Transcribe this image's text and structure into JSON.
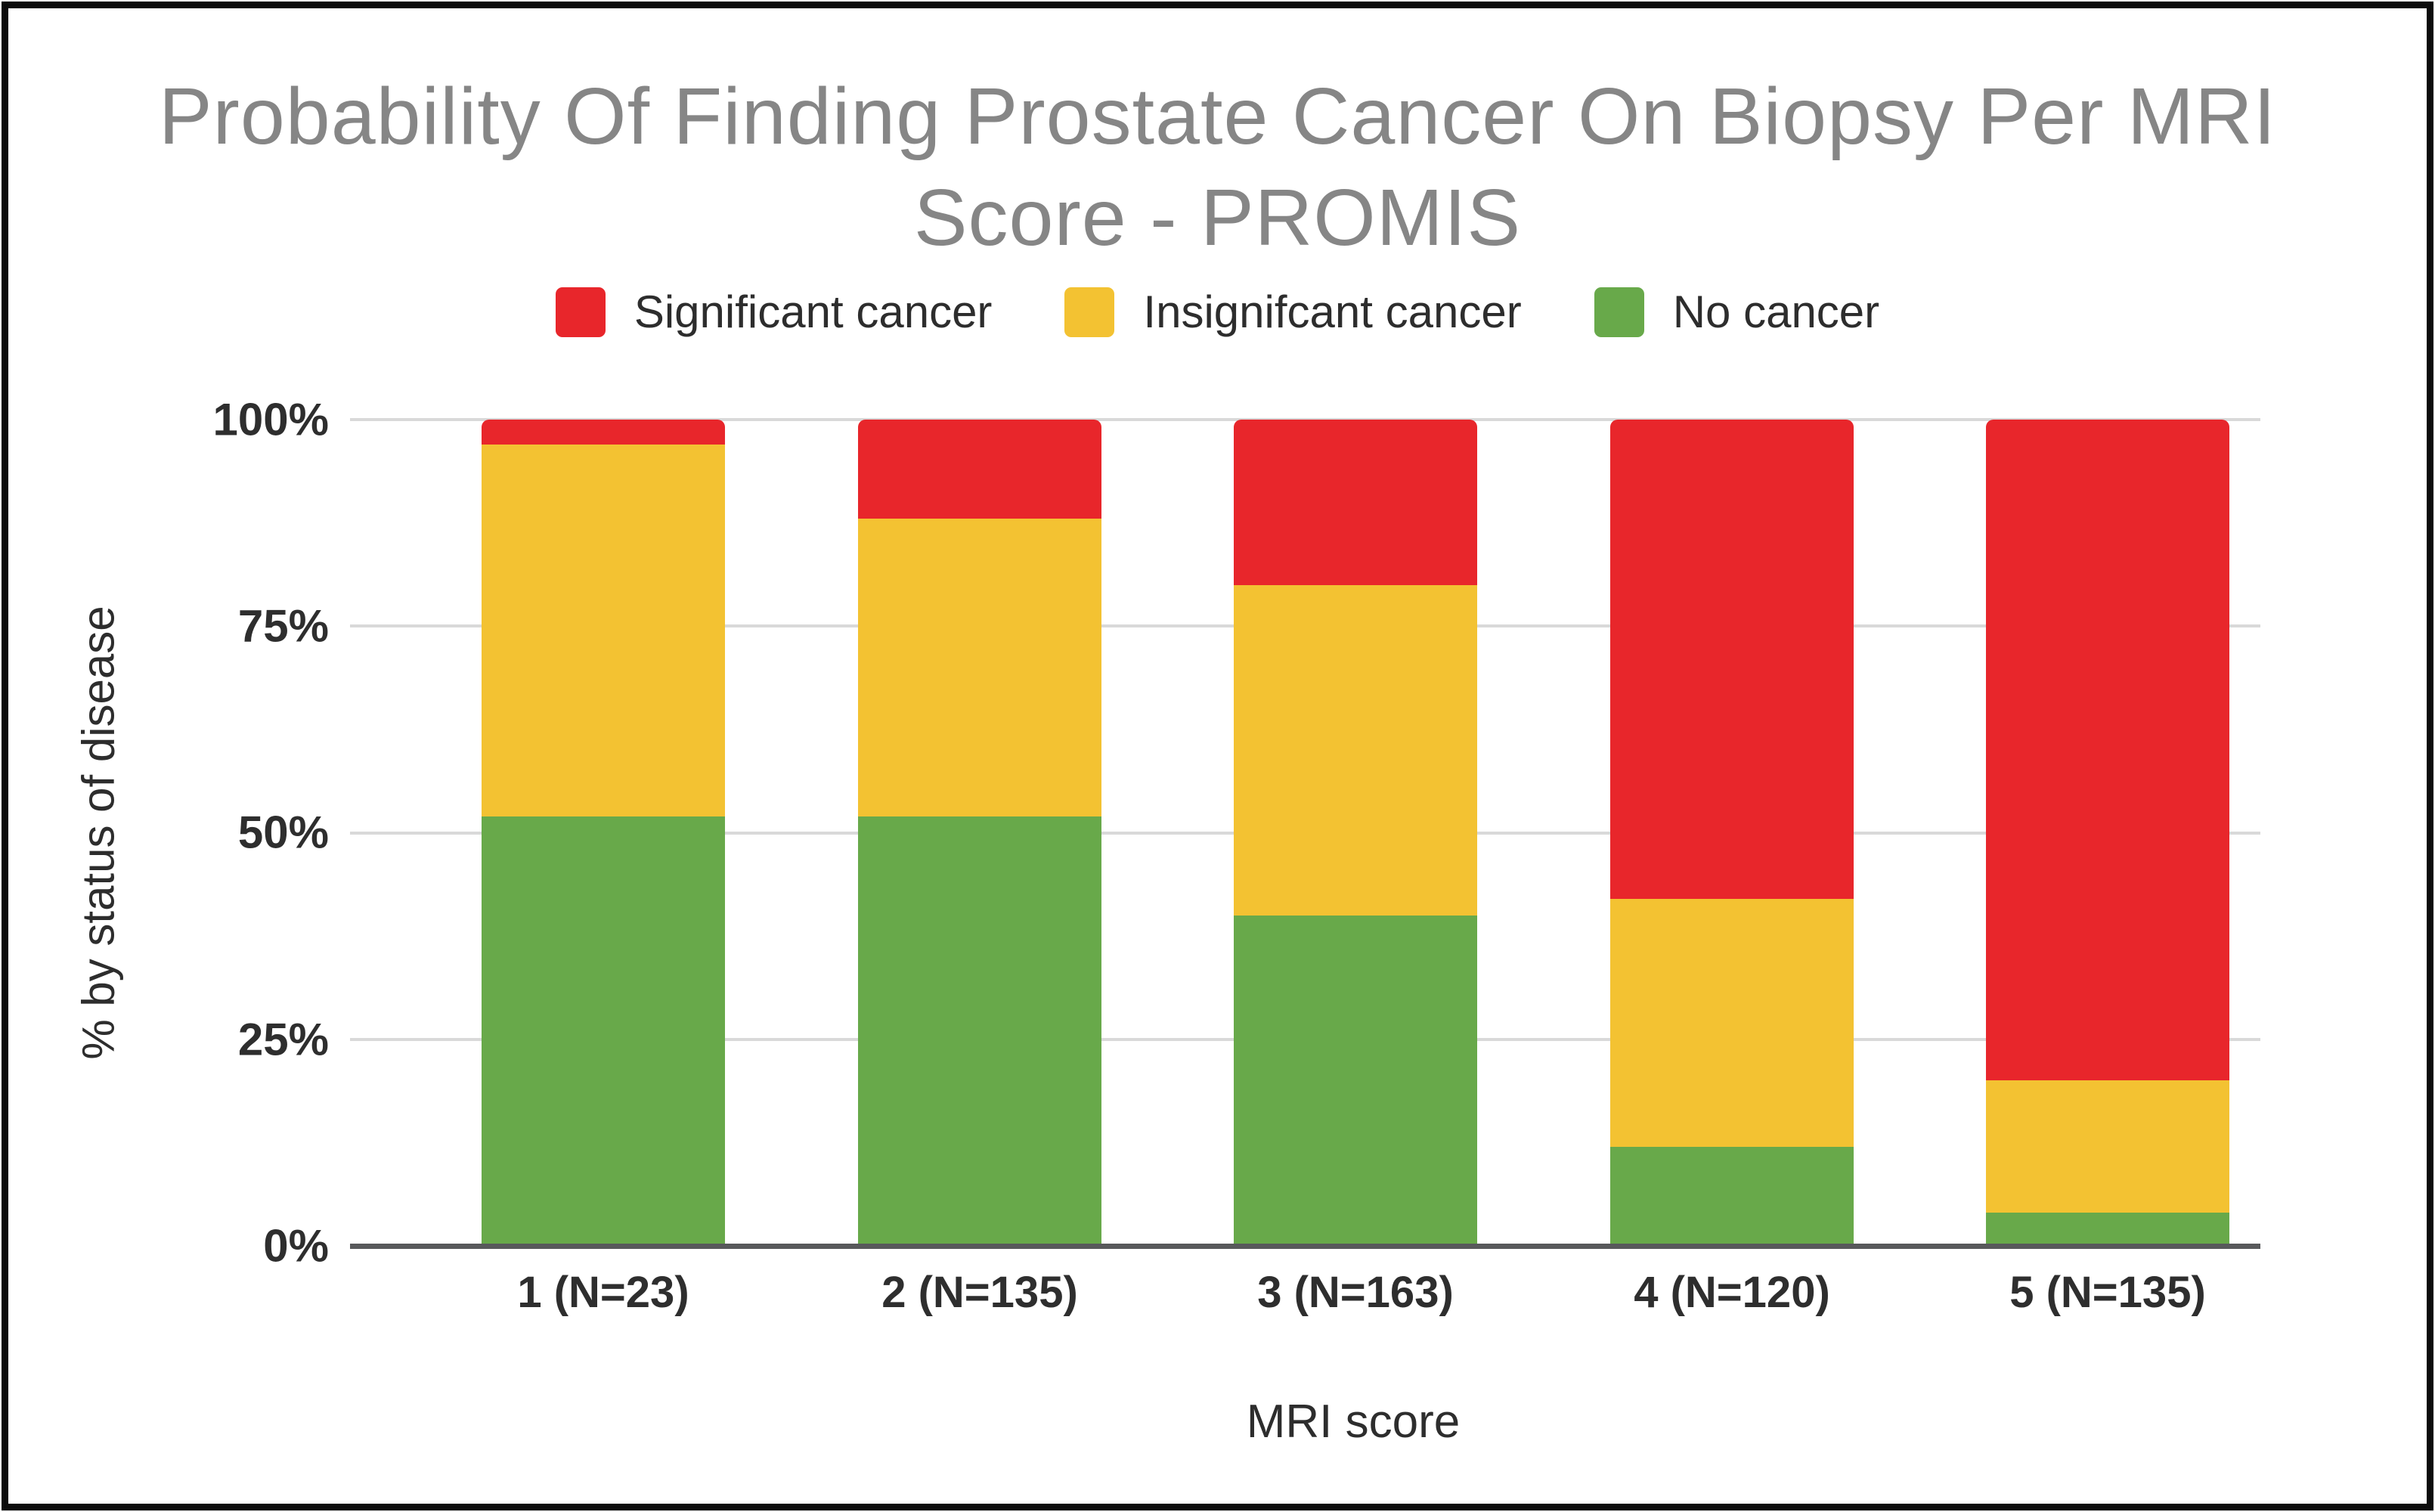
{
  "chart_data": {
    "type": "bar",
    "stacked": true,
    "orientation": "vertical",
    "title": "Probability Of Finding Prostate Cancer On Biopsy Per MRI Score - PROMIS",
    "xlabel": "MRI score",
    "ylabel": "% by status of disease",
    "categories": [
      "1 (N=23)",
      "2 (N=135)",
      "3 (N=163)",
      "4 (N=120)",
      "5 (N=135)"
    ],
    "series": [
      {
        "name": "Significant cancer",
        "color": "#e8262b",
        "values": [
          3,
          12,
          20,
          58,
          80
        ]
      },
      {
        "name": "Insignifcant cancer",
        "color": "#f3c232",
        "values": [
          45,
          36,
          40,
          30,
          16
        ]
      },
      {
        "name": "No cancer",
        "color": "#68a94a",
        "values": [
          52,
          52,
          40,
          12,
          4
        ]
      }
    ],
    "y_ticks": [
      "100%",
      "75%",
      "50%",
      "25%",
      "0%"
    ],
    "ylim": [
      0,
      100
    ],
    "grid": true,
    "legend_position": "top",
    "colors": {
      "title_text": "#868686",
      "tick_text": "#2e2e2e",
      "gridline": "#d9d9d9",
      "axis_line": "#58595b",
      "frame_border": "#0c0c0c",
      "background": "#ffffff"
    }
  }
}
